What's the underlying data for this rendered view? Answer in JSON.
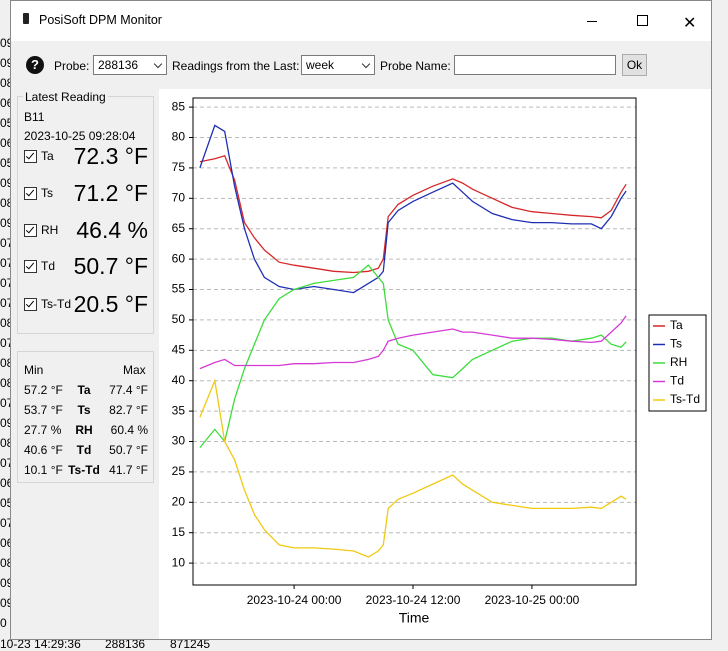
{
  "window": {
    "title": "PosiSoft DPM Monitor"
  },
  "background": {
    "row_fragments": [
      "09",
      "09",
      "08",
      "06",
      "05",
      "06",
      "05",
      "09",
      "08",
      "09",
      "07",
      "07",
      "07",
      "07",
      "08",
      "07",
      "08",
      "08",
      "07",
      "09",
      "08",
      "07",
      "06",
      "05",
      "07",
      "06",
      "08",
      "09",
      "09",
      "0"
    ],
    "bottom_row": [
      "10-23 14:29:36",
      "288136",
      "871245"
    ]
  },
  "toolbar": {
    "help": "?",
    "probe_label": "Probe:",
    "probe_value": "288136",
    "readings_label": "Readings from the Last:",
    "readings_value": "week",
    "probe_name_label": "Probe Name:",
    "ok_button": "Ok"
  },
  "latest": {
    "title": "Latest Reading",
    "probe": "B11",
    "timestamp": "2023-10-25 09:28:04",
    "rows": [
      {
        "name": "Ta",
        "value": "72.3 °F"
      },
      {
        "name": "Ts",
        "value": "71.2 °F"
      },
      {
        "name": "RH",
        "value": "46.4 %"
      },
      {
        "name": "Td",
        "value": "50.7 °F"
      },
      {
        "name": "Ts-Td",
        "value": "20.5 °F"
      }
    ]
  },
  "stats": {
    "min_header": "Min",
    "max_header": "Max",
    "rows": [
      [
        "57.2 °F",
        "Ta",
        "77.4 °F"
      ],
      [
        "53.7 °F",
        "Ts",
        "82.7 °F"
      ],
      [
        "27.7 %",
        "RH",
        "60.4 %"
      ],
      [
        "40.6 °F",
        "Td",
        "50.7 °F"
      ],
      [
        "10.1 °F",
        "Ts-Td",
        "41.7 °F"
      ]
    ]
  },
  "chart_data": {
    "type": "line",
    "x_label": "Time",
    "x": [
      "2023-10-23 14:30",
      "2023-10-23 16:00",
      "2023-10-23 17:00",
      "2023-10-23 18:00",
      "2023-10-23 19:00",
      "2023-10-23 20:00",
      "2023-10-23 21:00",
      "2023-10-23 22:30",
      "2023-10-24 00:00",
      "2023-10-24 02:00",
      "2023-10-24 04:00",
      "2023-10-24 06:00",
      "2023-10-24 07:30",
      "2023-10-24 08:30",
      "2023-10-24 09:00",
      "2023-10-24 09:30",
      "2023-10-24 10:30",
      "2023-10-24 12:00",
      "2023-10-24 14:00",
      "2023-10-24 16:00",
      "2023-10-24 17:00",
      "2023-10-24 18:00",
      "2023-10-24 20:00",
      "2023-10-24 22:00",
      "2023-10-25 00:00",
      "2023-10-25 02:00",
      "2023-10-25 04:00",
      "2023-10-25 06:00",
      "2023-10-25 07:00",
      "2023-10-25 08:00",
      "2023-10-25 09:00",
      "2023-10-25 09:30"
    ],
    "xlim": [
      "2023-10-23 13:48",
      "2023-10-25 10:30"
    ],
    "xticks": [
      "2023-10-24 00:00",
      "2023-10-24 12:00",
      "2023-10-25 00:00"
    ],
    "ylim": [
      6.4,
      86.5
    ],
    "yticks": [
      10,
      15,
      20,
      25,
      30,
      35,
      40,
      45,
      50,
      55,
      60,
      65,
      70,
      75,
      80,
      85
    ],
    "grid": true,
    "legend": "right",
    "series": [
      {
        "name": "Ta",
        "color": "#d62728",
        "values": [
          76,
          76.5,
          77,
          73,
          66,
          63.5,
          61.5,
          59.5,
          59,
          58.5,
          58,
          57.8,
          58,
          58.5,
          60,
          67,
          69,
          70.5,
          72,
          73.2,
          72.5,
          71.5,
          70,
          68.5,
          67.8,
          67.5,
          67.2,
          67,
          66.8,
          68,
          71,
          72.3
        ]
      },
      {
        "name": "Ts",
        "color": "#1f2fb4",
        "values": [
          75,
          82,
          81,
          72,
          65,
          60,
          57,
          55.5,
          55,
          55.5,
          55,
          54.5,
          56,
          57,
          58,
          66,
          68,
          69.5,
          71,
          72.5,
          71,
          69.5,
          67.5,
          66.5,
          66,
          66,
          65.8,
          65.8,
          65,
          67,
          70,
          71.2
        ]
      },
      {
        "name": "RH",
        "color": "#3ddc3d",
        "values": [
          29,
          32,
          30,
          37,
          42,
          46,
          50,
          53.5,
          55,
          56,
          56.5,
          57,
          59,
          57,
          56,
          50,
          46,
          45,
          41,
          40.5,
          42,
          43.5,
          45,
          46.5,
          47,
          47,
          46.5,
          47,
          47.5,
          46,
          45.5,
          46.4
        ]
      },
      {
        "name": "Td",
        "color": "#d63ad6",
        "values": [
          42,
          43,
          43.5,
          42.5,
          42.5,
          42.5,
          42.5,
          42.5,
          42.8,
          42.8,
          43,
          43,
          43.5,
          44,
          45,
          46.5,
          47,
          47.5,
          48,
          48.5,
          48,
          48,
          47.5,
          47,
          47,
          46.8,
          46.5,
          46.3,
          46.5,
          48,
          49.5,
          50.7
        ]
      },
      {
        "name": "Ts-Td",
        "color": "#f2c811",
        "values": [
          34,
          40,
          30,
          27,
          22,
          18,
          15.5,
          13,
          12.5,
          12.5,
          12.3,
          12,
          11,
          12,
          13,
          19,
          20.5,
          21.5,
          23,
          24.5,
          23,
          22,
          20,
          19.5,
          19,
          19,
          19,
          19.2,
          19,
          20,
          21,
          20.5
        ]
      }
    ]
  }
}
